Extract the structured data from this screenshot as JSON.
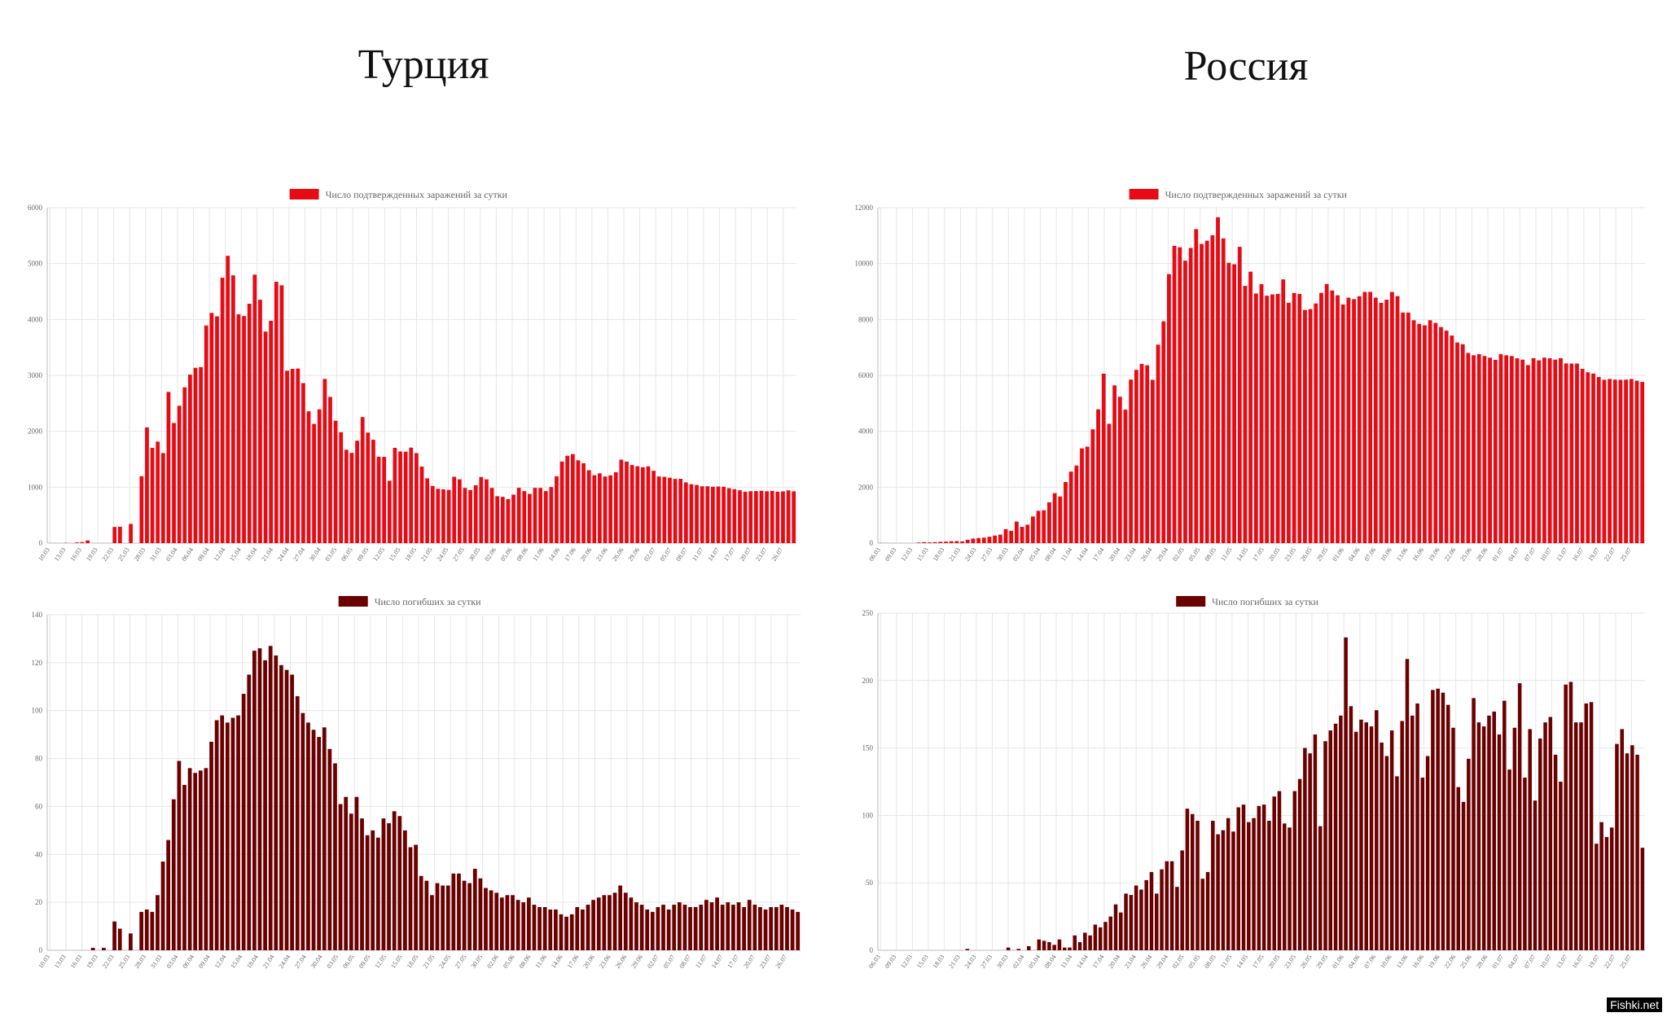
{
  "titles": {
    "left": "Турция",
    "right": "Россия"
  },
  "watermark": "Fishki.net",
  "colors": {
    "confirmed": "#e60b14",
    "deaths": "#6b0000",
    "grid": "#e6e6e6",
    "axis": "#bbbbbb",
    "text": "#666666"
  },
  "chart_data": [
    {
      "type": "bar",
      "legend": "Число подтвержденных заражений за сутки",
      "legend_position": "top-center",
      "grid": true,
      "color": "#e60b14",
      "ylim": [
        0,
        6000
      ],
      "yticks": [
        0,
        1000,
        2000,
        3000,
        4000,
        5000,
        6000
      ],
      "tick_labels": [
        "10.03",
        "13.03",
        "16.03",
        "19.03",
        "22.03",
        "25.03",
        "28.03",
        "31.03",
        "03.04",
        "06.04",
        "09.04",
        "12.04",
        "15.04",
        "18.04",
        "21.04",
        "24.04",
        "27.04",
        "30.04",
        "03.05",
        "06.05",
        "09.05",
        "12.05",
        "15.05",
        "18.05",
        "21.05",
        "24.05",
        "27.05",
        "30.05",
        "02.06",
        "05.06",
        "08.06",
        "11.06",
        "14.06",
        "17.06",
        "20.06",
        "23.06",
        "26.06",
        "29.06",
        "02.07",
        "05.07",
        "08.07",
        "11.07",
        "14.07",
        "17.07",
        "20.07",
        "23.07",
        "26.07"
      ],
      "values": [
        1,
        0,
        0,
        4,
        0,
        12,
        18,
        47,
        0,
        0,
        0,
        0,
        289,
        293,
        0,
        343,
        0,
        1196,
        2069,
        1704,
        1815,
        1610,
        2704,
        2148,
        2456,
        2786,
        3013,
        3135,
        3148,
        3892,
        4117,
        4056,
        4747,
        5138,
        4789,
        4093,
        4062,
        4281,
        4801,
        4353,
        3783,
        3977,
        4674,
        4611,
        3083,
        3116,
        3122,
        2861,
        2357,
        2131,
        2392,
        2936,
        2615,
        2188,
        1983,
        1670,
        1614,
        1832,
        2253,
        1977,
        1848,
        1546,
        1542,
        1114,
        1704,
        1639,
        1635,
        1708,
        1610,
        1368,
        1158,
        1022,
        972,
        961,
        952,
        1186,
        1141,
        987,
        948,
        1035,
        1182,
        1141,
        987,
        839,
        827,
        786,
        867,
        989,
        930,
        879,
        988,
        987,
        930,
        1002,
        1195,
        1459,
        1562,
        1592,
        1481,
        1429,
        1304,
        1214,
        1248,
        1192,
        1212,
        1268,
        1492,
        1458,
        1396,
        1374,
        1356,
        1372,
        1293,
        1192,
        1186,
        1170,
        1148,
        1150,
        1086,
        1053,
        1041,
        1016,
        1016,
        1008,
        1012,
        1008,
        982,
        964,
        945,
        919,
        928,
        930,
        936,
        927,
        934,
        919,
        925,
        943,
        926
      ]
    },
    {
      "type": "bar",
      "legend": "Число погибших за сутки",
      "legend_position": "top-center",
      "grid": true,
      "color": "#6b0000",
      "ylim": [
        0,
        140
      ],
      "yticks": [
        0,
        20,
        40,
        60,
        80,
        100,
        120,
        140
      ],
      "tick_labels": [
        "10.03",
        "13.03",
        "16.03",
        "19.03",
        "22.03",
        "25.03",
        "28.03",
        "31.03",
        "03.04",
        "06.04",
        "09.04",
        "12.04",
        "15.04",
        "18.04",
        "21.04",
        "24.04",
        "27.04",
        "30.04",
        "03.05",
        "06.05",
        "09.05",
        "12.05",
        "15.05",
        "18.05",
        "21.05",
        "24.05",
        "27.05",
        "30.05",
        "02.06",
        "05.06",
        "08.06",
        "11.06",
        "14.06",
        "17.06",
        "20.06",
        "23.06",
        "26.06",
        "29.06",
        "02.07",
        "05.07",
        "08.07",
        "11.07",
        "14.07",
        "17.07",
        "20.07",
        "23.07",
        "26.07"
      ],
      "values": [
        0,
        0,
        0,
        0,
        0,
        0,
        0,
        0,
        1,
        0,
        1,
        0,
        12,
        9,
        0,
        7,
        0,
        16,
        17,
        16,
        23,
        37,
        46,
        63,
        79,
        69,
        76,
        74,
        75,
        76,
        87,
        96,
        98,
        95,
        97,
        98,
        107,
        115,
        125,
        126,
        121,
        127,
        123,
        119,
        117,
        115,
        106,
        99,
        95,
        92,
        89,
        93,
        84,
        78,
        61,
        64,
        57,
        64,
        55,
        48,
        50,
        47,
        55,
        53,
        58,
        56,
        50,
        43,
        44,
        31,
        29,
        23,
        28,
        27,
        27,
        32,
        32,
        29,
        28,
        34,
        30,
        26,
        25,
        24,
        22,
        23,
        23,
        21,
        20,
        22,
        19,
        18,
        18,
        17,
        17,
        15,
        14,
        15,
        18,
        17,
        19,
        21,
        22,
        23,
        23,
        24,
        27,
        24,
        22,
        20,
        19,
        17,
        16,
        18,
        19,
        17,
        19,
        20,
        19,
        18,
        18,
        19,
        21,
        20,
        22,
        19,
        20,
        19,
        20,
        18,
        21,
        19,
        18,
        17,
        18,
        18,
        19,
        18,
        17,
        16
      ]
    },
    {
      "type": "bar",
      "legend": "Число подтвержденных заражений за сутки",
      "legend_position": "top-center",
      "grid": true,
      "color": "#e60b14",
      "ylim": [
        0,
        12000
      ],
      "yticks": [
        0,
        2000,
        4000,
        6000,
        8000,
        10000,
        12000
      ],
      "tick_labels": [
        "06.03",
        "09.03",
        "12.03",
        "15.03",
        "18.03",
        "21.03",
        "24.03",
        "27.03",
        "30.03",
        "02.04",
        "05.04",
        "08.04",
        "11.04",
        "14.04",
        "17.04",
        "20.04",
        "23.04",
        "26.04",
        "29.04",
        "02.05",
        "05.05",
        "08.05",
        "11.05",
        "14.05",
        "17.05",
        "20.05",
        "23.05",
        "26.05",
        "29.05",
        "01.06",
        "04.06",
        "07.06",
        "10.06",
        "13.06",
        "16.06",
        "19.06",
        "22.06",
        "25.06",
        "28.06",
        "01.07",
        "04.07",
        "07.07",
        "10.07",
        "13.07",
        "16.07",
        "19.07",
        "22.07",
        "25.07"
      ],
      "values": [
        6,
        3,
        0,
        0,
        0,
        0,
        0,
        20,
        33,
        26,
        34,
        47,
        53,
        65,
        71,
        57,
        120,
        163,
        182,
        196,
        228,
        270,
        302,
        500,
        440,
        771,
        582,
        658,
        954,
        1154,
        1175,
        1459,
        1786,
        1667,
        2186,
        2558,
        2774,
        3388,
        3448,
        4070,
        4785,
        6060,
        4268,
        5642,
        5236,
        4774,
        5849,
        6198,
        6411,
        6361,
        5841,
        7099,
        7933,
        9623,
        10633,
        10581,
        10102,
        10559,
        11231,
        10699,
        10817,
        11012,
        11656,
        10899,
        10028,
        9974,
        10598,
        9200,
        9709,
        8926,
        9263,
        8849,
        8894,
        8915,
        9434,
        8599,
        8946,
        8915,
        8338,
        8371,
        8572,
        8952,
        9268,
        9035,
        8863,
        8536,
        8779,
        8726,
        8831,
        8985,
        8987,
        8779,
        8595,
        8706,
        8984,
        8835,
        8248,
        8246,
        7972,
        7843,
        7790,
        7972,
        7876,
        7728,
        7600,
        7425,
        7176,
        7113,
        6800,
        6719,
        6760,
        6693,
        6632,
        6556,
        6760,
        6719,
        6693,
        6611,
        6562,
        6368,
        6615,
        6537,
        6635,
        6611,
        6562,
        6615,
        6428,
        6422,
        6422,
        6234,
        6109,
        6065,
        5940,
        5842,
        5871,
        5848,
        5842,
        5848,
        5871,
        5811,
        5765
      ]
    },
    {
      "type": "bar",
      "legend": "Число погибших за сутки",
      "legend_position": "top-center",
      "grid": true,
      "color": "#6b0000",
      "ylim": [
        0,
        250
      ],
      "yticks": [
        0,
        50,
        100,
        150,
        200,
        250
      ],
      "tick_labels": [
        "06.03",
        "09.03",
        "12.03",
        "15.03",
        "18.03",
        "21.03",
        "24.03",
        "27.03",
        "30.03",
        "02.04",
        "05.04",
        "08.04",
        "11.04",
        "14.04",
        "17.04",
        "20.04",
        "23.04",
        "26.04",
        "29.04",
        "02.05",
        "05.05",
        "08.05",
        "11.05",
        "14.05",
        "17.05",
        "20.05",
        "23.05",
        "26.05",
        "29.05",
        "01.06",
        "04.06",
        "07.06",
        "10.06",
        "13.06",
        "16.06",
        "19.06",
        "22.06",
        "25.06",
        "28.06",
        "01.07",
        "04.07",
        "07.07",
        "10.07",
        "13.07",
        "16.07",
        "19.07",
        "22.07",
        "25.07"
      ],
      "values": [
        0,
        0,
        0,
        0,
        0,
        0,
        0,
        0,
        0,
        0,
        0,
        0,
        0,
        0,
        0,
        0,
        0,
        1,
        0,
        0,
        0,
        0,
        0,
        0,
        0,
        2,
        0,
        1,
        0,
        3,
        0,
        8,
        7,
        6,
        4,
        8,
        2,
        2,
        11,
        6,
        13,
        11,
        19,
        17,
        21,
        25,
        34,
        28,
        42,
        41,
        48,
        45,
        52,
        58,
        42,
        60,
        66,
        66,
        47,
        74,
        105,
        101,
        96,
        53,
        58,
        96,
        86,
        89,
        98,
        88,
        106,
        108,
        95,
        98,
        107,
        108,
        96,
        114,
        118,
        94,
        91,
        118,
        127,
        150,
        146,
        160,
        92,
        155,
        163,
        168,
        174,
        232,
        181,
        162,
        171,
        169,
        166,
        178,
        154,
        144,
        163,
        129,
        170,
        216,
        174,
        183,
        128,
        144,
        193,
        194,
        191,
        182,
        165,
        121,
        110,
        142,
        187,
        169,
        166,
        174,
        177,
        160,
        185,
        134,
        165,
        198,
        128,
        164,
        111,
        157,
        169,
        173,
        145,
        125,
        197,
        199,
        169,
        169,
        183,
        184,
        79,
        95,
        84,
        91,
        153,
        164,
        146,
        152,
        145,
        76
      ]
    }
  ]
}
